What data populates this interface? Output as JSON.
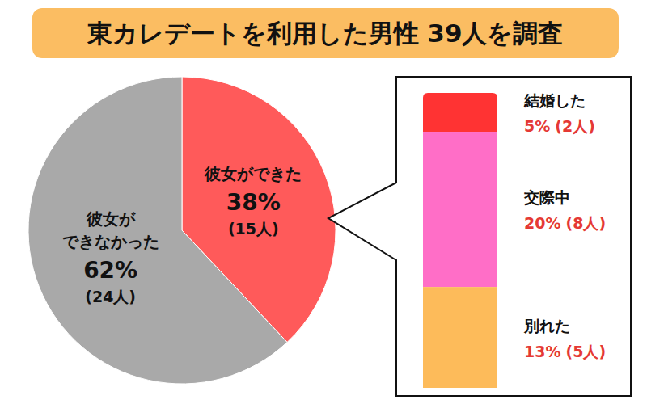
{
  "title": "東カレデートを利用した男性 39人を調査",
  "chart_data": [
    {
      "type": "pie",
      "categories": [
        "彼女ができた",
        "彼女が\nできなかった"
      ],
      "values": [
        38,
        62
      ],
      "value_labels": [
        "38%",
        "62%"
      ],
      "count_labels": [
        "(15人)",
        "(24人)"
      ],
      "colors": [
        "#ff5a5a",
        "#a9a9a9"
      ],
      "data_labels": true
    },
    {
      "type": "bar",
      "stacked": true,
      "categories": [
        null
      ],
      "tick_labels": false,
      "data_labels": true,
      "series": [
        {
          "name": "結婚した",
          "color": "#ff3333",
          "values": [
            5
          ],
          "value_labels": [
            "5%"
          ],
          "count_labels": [
            "(2人)"
          ]
        },
        {
          "name": "交際中",
          "color": "#ff6ec7",
          "values": [
            20
          ],
          "value_labels": [
            "20%"
          ],
          "count_labels": [
            "(8人)"
          ]
        },
        {
          "name": "別れた",
          "color": "#fdbb5a",
          "values": [
            13
          ],
          "value_labels": [
            "13%"
          ],
          "count_labels": [
            "(5人)"
          ]
        }
      ]
    }
  ]
}
